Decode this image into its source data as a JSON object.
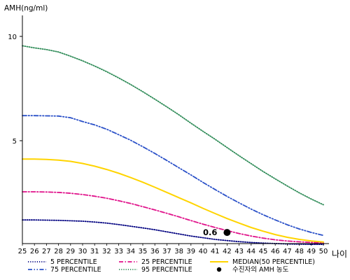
{
  "chart_data": {
    "type": "line",
    "ylabel": "AMH(ng/ml)",
    "xlabel": "나이",
    "xlim": [
      25,
      50
    ],
    "ylim": [
      0,
      11
    ],
    "x": [
      25,
      26,
      27,
      28,
      29,
      30,
      31,
      32,
      33,
      34,
      35,
      36,
      37,
      38,
      39,
      40,
      41,
      42,
      43,
      44,
      45,
      46,
      47,
      48,
      49,
      50
    ],
    "x_ticks": [
      "25",
      "26",
      "27",
      "28",
      "29",
      "30",
      "31",
      "32",
      "33",
      "34",
      "35",
      "36",
      "37",
      "38",
      "39",
      "40",
      "41",
      "42",
      "43",
      "44",
      "45",
      "46",
      "47",
      "48",
      "49",
      "50"
    ],
    "y_ticks": [
      {
        "value": 5,
        "label": "5"
      },
      {
        "value": 10,
        "label": "10"
      }
    ],
    "grid": false,
    "legend_position": "bottom",
    "series": [
      {
        "name": "5 PERCENTILE",
        "color": "#000080",
        "style": "dotted",
        "values": [
          1.2,
          1.2,
          1.19,
          1.18,
          1.16,
          1.14,
          1.1,
          1.05,
          0.98,
          0.9,
          0.82,
          0.73,
          0.63,
          0.53,
          0.43,
          0.35,
          0.27,
          0.21,
          0.16,
          0.12,
          0.09,
          0.07,
          0.05,
          0.04,
          0.03,
          0.03
        ]
      },
      {
        "name": "25 PERCENTILE",
        "color": "#e0118a",
        "style": "dashdot",
        "values": [
          2.55,
          2.55,
          2.54,
          2.52,
          2.48,
          2.42,
          2.34,
          2.24,
          2.12,
          1.99,
          1.84,
          1.68,
          1.52,
          1.35,
          1.17,
          1.0,
          0.84,
          0.69,
          0.55,
          0.43,
          0.33,
          0.25,
          0.19,
          0.15,
          0.12,
          0.1
        ]
      },
      {
        "name": "MEDIAN(50 PERCENTILE)",
        "color": "#ffd400",
        "style": "solid",
        "values": [
          4.12,
          4.12,
          4.1,
          4.07,
          4.01,
          3.91,
          3.78,
          3.62,
          3.44,
          3.23,
          3.01,
          2.77,
          2.52,
          2.27,
          2.02,
          1.76,
          1.51,
          1.27,
          1.05,
          0.84,
          0.66,
          0.5,
          0.37,
          0.27,
          0.19,
          0.14
        ]
      },
      {
        "name": "75 PERCENTILE",
        "color": "#2a50c8",
        "style": "dashdotdot",
        "values": [
          6.2,
          6.2,
          6.19,
          6.18,
          6.1,
          5.92,
          5.76,
          5.55,
          5.29,
          5.02,
          4.71,
          4.39,
          4.05,
          3.7,
          3.36,
          3.0,
          2.66,
          2.33,
          2.02,
          1.72,
          1.45,
          1.2,
          0.97,
          0.77,
          0.6,
          0.46
        ]
      },
      {
        "name": "95 PERCENTILE",
        "color": "#2e8b57",
        "style": "dotted",
        "values": [
          9.55,
          9.45,
          9.37,
          9.25,
          9.05,
          8.83,
          8.58,
          8.31,
          8.01,
          7.69,
          7.35,
          6.99,
          6.62,
          6.24,
          5.84,
          5.45,
          5.07,
          4.67,
          4.28,
          3.9,
          3.52,
          3.17,
          2.83,
          2.5,
          2.2,
          1.93
        ]
      }
    ],
    "points": [
      {
        "name": "수진자의 AMH 농도",
        "x": 42,
        "y": 0.6,
        "label": "0.6",
        "color": "#000000"
      }
    ]
  }
}
